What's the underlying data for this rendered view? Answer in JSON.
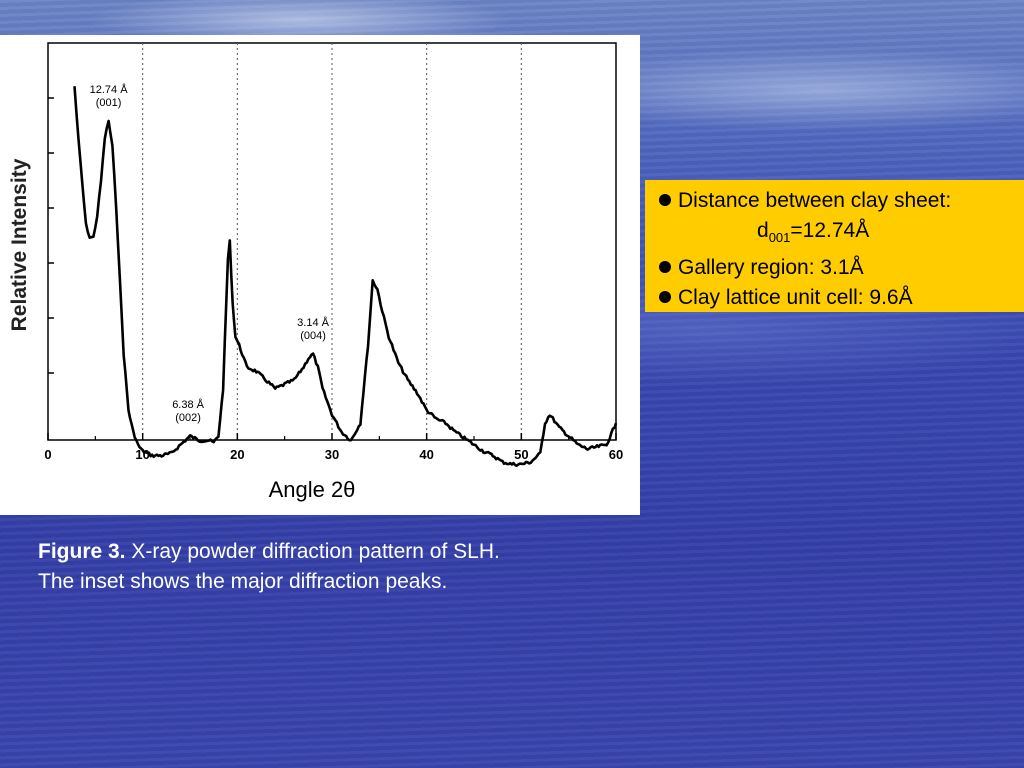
{
  "chart_data": {
    "type": "line",
    "xlabel": "Angle 2θ",
    "ylabel": "Relative Intensity",
    "xlim": [
      0,
      60
    ],
    "ylim": [
      0,
      100
    ],
    "xticks": [
      "0",
      "10",
      "20",
      "30",
      "40",
      "50",
      "60"
    ],
    "grid": "vertical-dotted",
    "series": [
      {
        "x": [
          2.8,
          3.2,
          3.6,
          4.0,
          4.4,
          4.8,
          5.2,
          5.6,
          6.0,
          6.4,
          6.8,
          7.2,
          7.6,
          8.0,
          8.5,
          9.0,
          9.5,
          10,
          11,
          12,
          13,
          14,
          15,
          16,
          17,
          17.5,
          18,
          18.5,
          19.0,
          19.2,
          19.5,
          19.8,
          20.2,
          21,
          22,
          23,
          24,
          25,
          26,
          27,
          27.5,
          28,
          28.5,
          29,
          30,
          31,
          32,
          33,
          33.8,
          34.3,
          34.8,
          35.3,
          36,
          37,
          38,
          39,
          40,
          41,
          42,
          43,
          44,
          45,
          46,
          47,
          48,
          49,
          50,
          51,
          52,
          52.5,
          53,
          54,
          55,
          56,
          57,
          58,
          59,
          60
        ],
        "y": [
          90,
          78,
          68,
          58,
          55,
          55,
          60,
          68,
          78,
          82,
          76,
          62,
          45,
          28,
          15,
          10,
          7,
          5.5,
          4.5,
          4.5,
          5,
          7,
          9,
          8,
          8,
          7.5,
          9,
          20,
          50,
          54,
          40,
          32,
          30,
          25,
          24,
          22,
          20,
          21,
          22,
          25,
          27,
          28,
          25,
          20,
          14,
          10,
          8,
          12,
          30,
          45,
          43,
          38,
          32,
          26,
          22,
          19,
          15,
          13,
          12,
          10,
          8.5,
          7,
          5.5,
          4.5,
          3,
          2.5,
          2.5,
          3,
          5,
          12,
          14,
          11,
          9,
          7,
          6,
          6.5,
          7,
          12
        ]
      }
    ],
    "annotations": [
      {
        "text": "12.74 Å",
        "sub": "(001)",
        "x": 6.4,
        "y": 82
      },
      {
        "text": "6.38 Å",
        "sub": "(002)",
        "x": 14.8,
        "y": 9
      },
      {
        "text": "3.14 Å",
        "sub": "(004)",
        "x": 28.0,
        "y": 28
      }
    ]
  },
  "info_box": {
    "line1": "Distance between clay sheet:",
    "d_prefix": "d",
    "d_sub": "001",
    "d_value": "=12.74Å",
    "line3": "Gallery region: 3.1Å",
    "line4": "Clay lattice unit cell: 9.6Å"
  },
  "caption": {
    "label": "Figure 3.",
    "text1": " X-ray powder diffraction pattern of SLH.",
    "text2": "The inset shows the major diffraction peaks."
  }
}
